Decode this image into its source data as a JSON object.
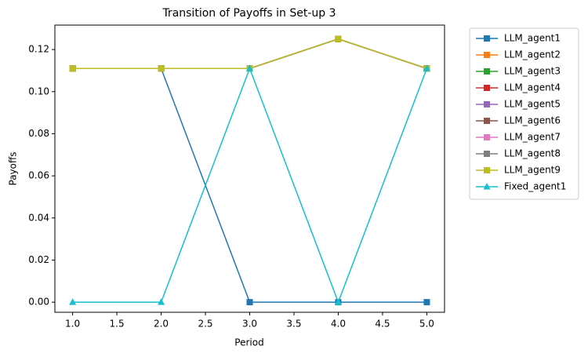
{
  "chart_data": {
    "type": "line",
    "title": "Transition of Payoffs in Set-up 3",
    "x_label": "Period",
    "y_label": "Payoffs",
    "x": [
      1,
      2,
      3,
      4,
      5
    ],
    "xlim": [
      0.8,
      5.2
    ],
    "xticks": [
      {
        "value": 1,
        "label": "1.0"
      },
      {
        "value": 1.5,
        "label": "1.5"
      },
      {
        "value": 2,
        "label": "2.0"
      },
      {
        "value": 2.5,
        "label": "2.5"
      },
      {
        "value": 3,
        "label": "3.0"
      },
      {
        "value": 3.5,
        "label": "3.5"
      },
      {
        "value": 4,
        "label": "4.0"
      },
      {
        "value": 4.5,
        "label": "4.5"
      },
      {
        "value": 5,
        "label": "5.0"
      }
    ],
    "ylim": [
      -0.0048,
      0.1316
    ],
    "yticks": [
      {
        "value": 0,
        "label": "0.00"
      },
      {
        "value": 0.02,
        "label": "0.02"
      },
      {
        "value": 0.04,
        "label": "0.04"
      },
      {
        "value": 0.06,
        "label": "0.06"
      },
      {
        "value": 0.08,
        "label": "0.08"
      },
      {
        "value": 0.1,
        "label": "0.10"
      },
      {
        "value": 0.12,
        "label": "0.12"
      }
    ],
    "grid": false,
    "legend": "outside-right",
    "series": [
      {
        "name": "LLM_agent1",
        "color": "#1f77b4",
        "marker": "square",
        "values": [
          0.111,
          0.111,
          0,
          0,
          0
        ]
      },
      {
        "name": "LLM_agent2",
        "color": "#ff7f0e",
        "marker": "square",
        "values": [
          0.111,
          0.111,
          0.111,
          0.125,
          0.111
        ]
      },
      {
        "name": "LLM_agent3",
        "color": "#2ca02c",
        "marker": "square",
        "values": [
          0.111,
          0.111,
          0.111,
          0.125,
          0.111
        ]
      },
      {
        "name": "LLM_agent4",
        "color": "#d62728",
        "marker": "square",
        "values": [
          0.111,
          0.111,
          0.111,
          0.125,
          0.111
        ]
      },
      {
        "name": "LLM_agent5",
        "color": "#9467bd",
        "marker": "square",
        "values": [
          0.111,
          0.111,
          0.111,
          0.125,
          0.111
        ]
      },
      {
        "name": "LLM_agent6",
        "color": "#8c564b",
        "marker": "square",
        "values": [
          0.111,
          0.111,
          0.111,
          0.125,
          0.111
        ]
      },
      {
        "name": "LLM_agent7",
        "color": "#e377c2",
        "marker": "square",
        "values": [
          0.111,
          0.111,
          0.111,
          0.125,
          0.111
        ]
      },
      {
        "name": "LLM_agent8",
        "color": "#7f7f7f",
        "marker": "square",
        "values": [
          0.111,
          0.111,
          0.111,
          0.125,
          0.111
        ]
      },
      {
        "name": "LLM_agent9",
        "color": "#bcbd22",
        "marker": "square",
        "values": [
          0.111,
          0.111,
          0.111,
          0.125,
          0.111
        ]
      },
      {
        "name": "Fixed_agent1",
        "color": "#17becf",
        "marker": "triangle",
        "values": [
          0,
          0,
          0.111,
          0,
          0.111
        ]
      }
    ]
  }
}
